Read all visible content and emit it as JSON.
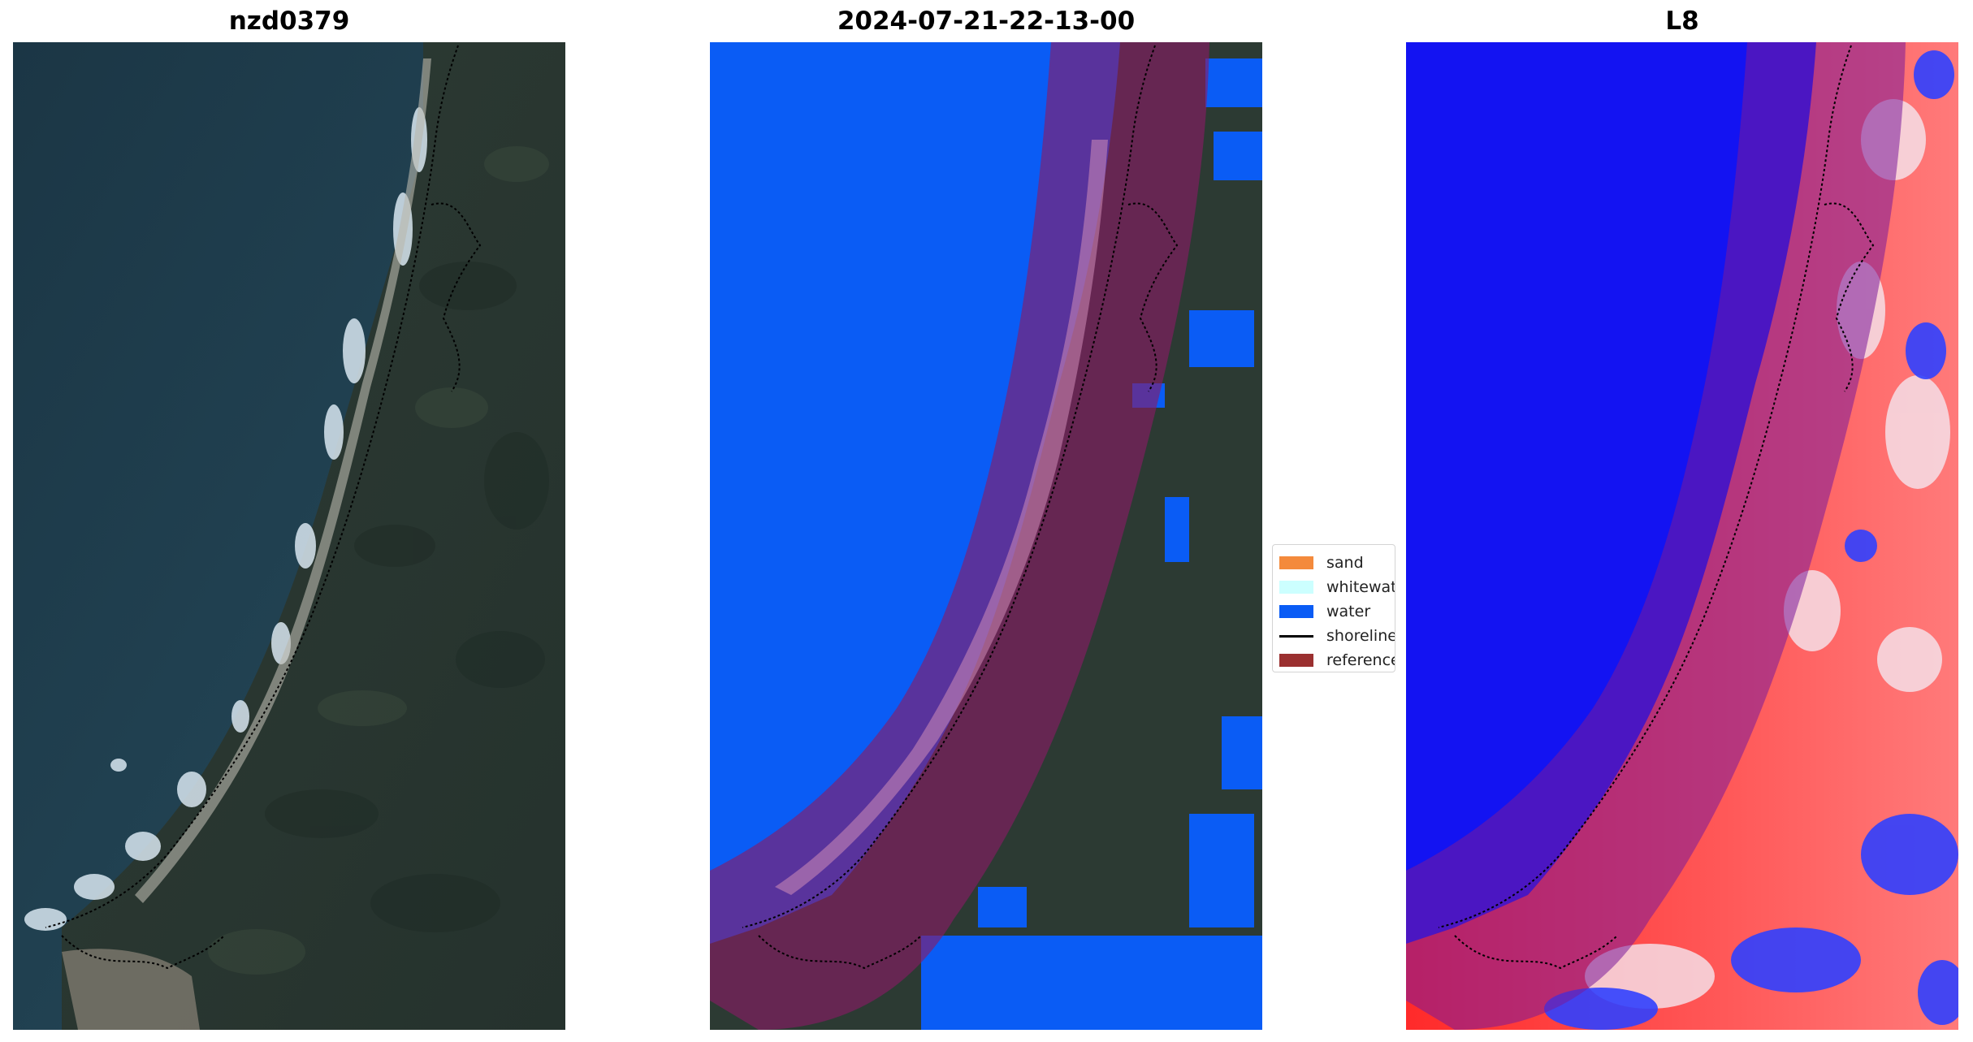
{
  "panels": {
    "rgb": {
      "title": "nzd0379"
    },
    "classified": {
      "title": "2024-07-21-22-13-00"
    },
    "index": {
      "title": "L8"
    }
  },
  "legend": {
    "items": [
      {
        "label": "sand",
        "color": "#f48a3c",
        "kind": "patch"
      },
      {
        "label": "whitewater",
        "color": "#ccffff",
        "kind": "patch"
      },
      {
        "label": "water",
        "color": "#0a5cf5",
        "kind": "patch"
      },
      {
        "label": "shoreline",
        "color": "#000000",
        "kind": "line"
      },
      {
        "label": "reference shoreline buffer",
        "color": "#9b3030",
        "kind": "patch"
      }
    ]
  },
  "colors": {
    "ocean": "#1c3a47",
    "forest": "#2a3a33",
    "water_class": "#0a5cf5",
    "buffer_overlay": "#8b1a66",
    "index_low": "#1010ff",
    "index_high": "#ff1a1a"
  }
}
